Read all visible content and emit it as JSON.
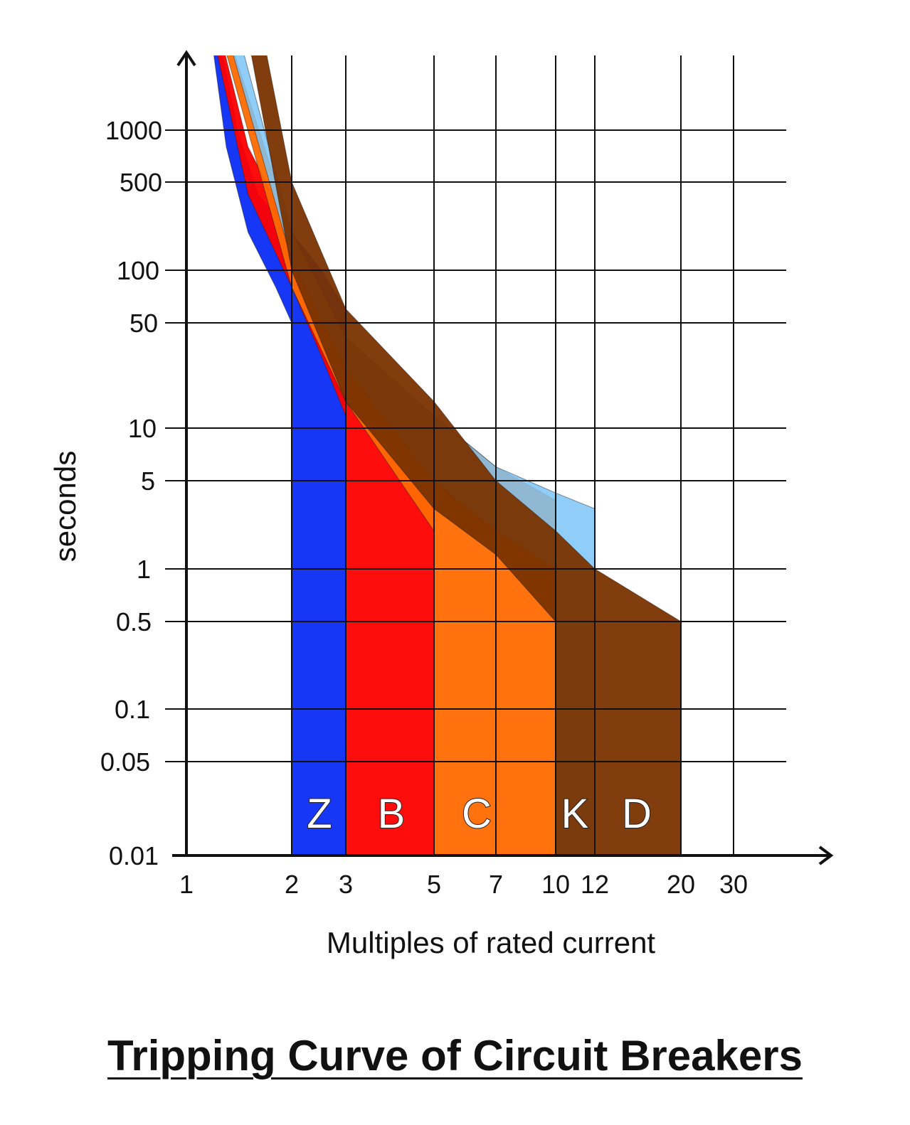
{
  "chart_data": {
    "type": "area",
    "title": "Tripping Curve of Circuit Breakers",
    "xlabel": "Multiples of rated current",
    "ylabel": "seconds",
    "x_ticks": [
      1,
      2,
      3,
      5,
      7,
      10,
      12,
      20,
      30
    ],
    "y_ticks": [
      0.01,
      0.05,
      0.1,
      0.5,
      1,
      5,
      10,
      50,
      100,
      500,
      1000
    ],
    "x_tick_labels": [
      "1",
      "2",
      "3",
      "5",
      "7",
      "10",
      "12",
      "20",
      "30"
    ],
    "y_tick_labels": [
      "0.01",
      "0.05",
      "0.1",
      "0.5",
      "1",
      "5",
      "10",
      "50",
      "100",
      "500",
      "1000"
    ],
    "series": [
      {
        "name": "Z",
        "color": "#0a2df5",
        "instant_range": [
          2,
          3
        ],
        "lower": [
          [
            1.15,
            5000
          ],
          [
            1.3,
            800
          ],
          [
            1.5,
            200
          ],
          [
            1.8,
            80
          ],
          [
            2,
            50
          ],
          [
            2.5,
            20
          ],
          [
            3,
            8
          ]
        ],
        "upper": [
          [
            1.2,
            5000
          ],
          [
            1.4,
            1000
          ],
          [
            1.6,
            400
          ],
          [
            2,
            200
          ],
          [
            2.5,
            100
          ],
          [
            3,
            60
          ]
        ]
      },
      {
        "name": "B",
        "color": "#ff0000",
        "instant_range": [
          3,
          5
        ],
        "lower": [
          [
            1.15,
            5000
          ],
          [
            1.5,
            400
          ],
          [
            2,
            80
          ],
          [
            2.5,
            30
          ],
          [
            3,
            12
          ],
          [
            4,
            4
          ],
          [
            5,
            1
          ]
        ],
        "upper": [
          [
            1.2,
            5000
          ],
          [
            1.5,
            800
          ],
          [
            2,
            200
          ],
          [
            3,
            40
          ],
          [
            4,
            20
          ],
          [
            5,
            12
          ]
        ]
      },
      {
        "name": "C",
        "color": "#ff6a00",
        "instant_range": [
          5,
          10
        ],
        "lower": [
          [
            1.2,
            5000
          ],
          [
            2,
            80
          ],
          [
            3,
            15
          ],
          [
            5,
            2
          ],
          [
            7,
            0.6
          ],
          [
            10,
            0.3
          ]
        ],
        "upper": [
          [
            1.25,
            5000
          ],
          [
            2,
            200
          ],
          [
            3,
            40
          ],
          [
            5,
            12
          ],
          [
            7,
            6
          ],
          [
            10,
            3.5
          ]
        ]
      },
      {
        "name": "K",
        "color": "#7cc4f7",
        "instant_range": [
          10,
          12
        ],
        "lower": [
          [
            1.25,
            5000
          ],
          [
            2,
            120
          ],
          [
            3,
            25
          ],
          [
            5,
            5
          ],
          [
            7,
            2
          ],
          [
            10,
            1
          ],
          [
            12,
            1
          ]
        ],
        "upper": [
          [
            1.35,
            5000
          ],
          [
            2,
            200
          ],
          [
            3,
            40
          ],
          [
            5,
            12
          ],
          [
            7,
            6
          ],
          [
            10,
            4
          ],
          [
            12,
            3
          ]
        ]
      },
      {
        "name": "D",
        "color": "#7a3300",
        "instant_range": [
          10,
          20
        ],
        "lower": [
          [
            1.45,
            5000
          ],
          [
            2,
            100
          ],
          [
            3,
            15
          ],
          [
            5,
            3
          ],
          [
            7,
            1.3
          ],
          [
            10,
            0.5
          ],
          [
            20,
            0.5
          ]
        ],
        "upper": [
          [
            1.6,
            5000
          ],
          [
            2,
            500
          ],
          [
            3,
            60
          ],
          [
            5,
            15
          ],
          [
            7,
            5
          ],
          [
            10,
            2
          ],
          [
            12,
            1
          ],
          [
            20,
            0.5
          ]
        ]
      }
    ],
    "grid": true
  }
}
